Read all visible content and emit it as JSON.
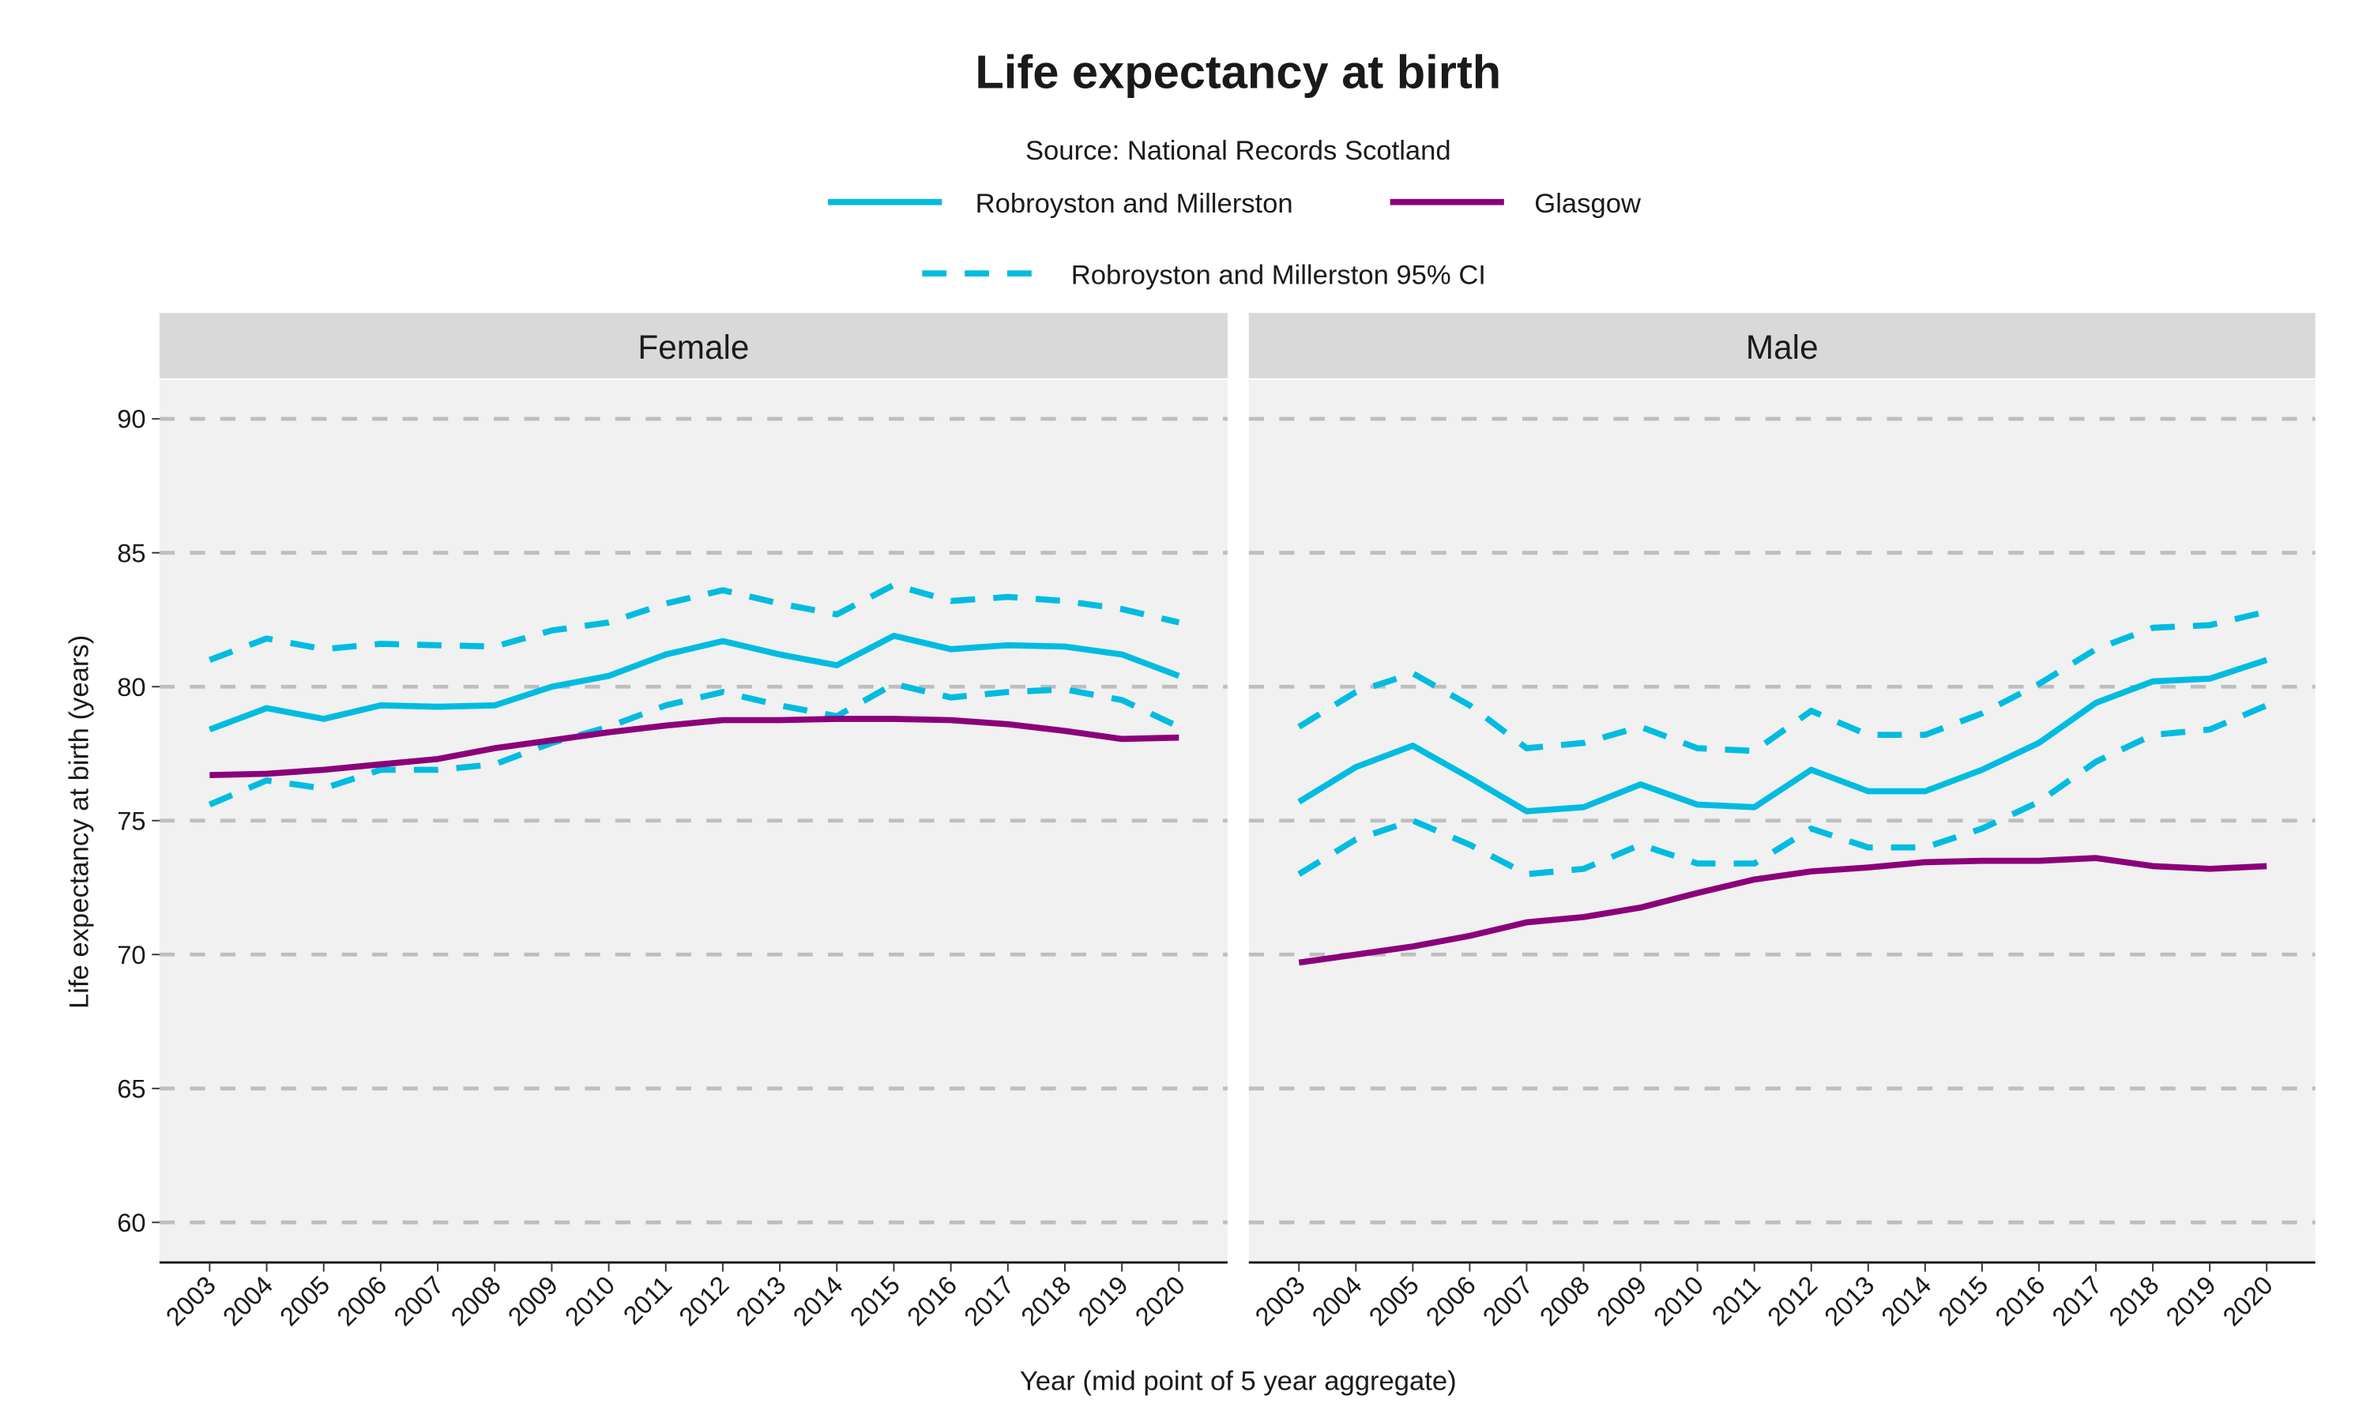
{
  "chart_data": [
    {
      "type": "line",
      "title": "Life expectancy at birth",
      "subtitle": "Source: National Records Scotland",
      "xlabel": "Year (mid point of 5 year aggregate)",
      "ylabel": "Life expectancy at birth (years)",
      "ylim": [
        58.5,
        91.5
      ],
      "yticks": [
        60,
        65,
        70,
        75,
        80,
        85,
        90
      ],
      "grid": true,
      "legend_position": "top",
      "legend": [
        {
          "label": "Robroyston and Millerston",
          "style": "solid",
          "color": "#00BCE0"
        },
        {
          "label": "Glasgow",
          "style": "solid",
          "color": "#8B007A"
        },
        {
          "label": "Robroyston and Millerston 95% CI",
          "style": "dashed",
          "color": "#00BCE0"
        }
      ],
      "x": [
        "2003",
        "2004",
        "2005",
        "2006",
        "2007",
        "2008",
        "2009",
        "2010",
        "2011",
        "2012",
        "2013",
        "2014",
        "2015",
        "2016",
        "2017",
        "2018",
        "2019",
        "2020"
      ],
      "panels": [
        {
          "name": "Female",
          "series": [
            {
              "name": "Robroyston and Millerston",
              "values": [
                78.4,
                79.2,
                78.8,
                79.3,
                79.25,
                79.3,
                80.0,
                80.4,
                81.2,
                81.7,
                81.2,
                80.8,
                81.9,
                81.4,
                81.55,
                81.5,
                81.2,
                80.4
              ]
            },
            {
              "name": "Robroyston and Millerston 95% CI upper",
              "values": [
                81.0,
                81.8,
                81.4,
                81.6,
                81.55,
                81.5,
                82.1,
                82.4,
                83.1,
                83.6,
                83.1,
                82.7,
                83.8,
                83.2,
                83.35,
                83.2,
                82.9,
                82.4
              ]
            },
            {
              "name": "Robroyston and Millerston 95% CI lower",
              "values": [
                75.6,
                76.5,
                76.2,
                76.9,
                76.9,
                77.1,
                77.9,
                78.5,
                79.3,
                79.8,
                79.3,
                78.9,
                80.1,
                79.6,
                79.8,
                79.9,
                79.5,
                78.5
              ]
            },
            {
              "name": "Glasgow",
              "values": [
                76.7,
                76.75,
                76.9,
                77.1,
                77.3,
                77.7,
                78.0,
                78.3,
                78.55,
                78.75,
                78.75,
                78.8,
                78.8,
                78.75,
                78.6,
                78.35,
                78.05,
                78.1
              ]
            }
          ]
        },
        {
          "name": "Male",
          "series": [
            {
              "name": "Robroyston and Millerston",
              "values": [
                75.7,
                77.0,
                77.8,
                76.6,
                75.35,
                75.5,
                76.35,
                75.6,
                75.5,
                76.9,
                76.1,
                76.1,
                76.9,
                77.9,
                79.4,
                80.2,
                80.3,
                81.0
              ]
            },
            {
              "name": "Robroyston and Millerston 95% CI upper",
              "values": [
                78.5,
                79.8,
                80.5,
                79.3,
                77.7,
                77.9,
                78.5,
                77.7,
                77.6,
                79.1,
                78.2,
                78.2,
                79.0,
                80.1,
                81.4,
                82.2,
                82.3,
                82.8
              ]
            },
            {
              "name": "Robroyston and Millerston 95% CI lower",
              "values": [
                73.0,
                74.3,
                75.0,
                74.1,
                73.0,
                73.2,
                74.1,
                73.4,
                73.4,
                74.7,
                74.0,
                74.0,
                74.7,
                75.7,
                77.2,
                78.2,
                78.4,
                79.3
              ]
            },
            {
              "name": "Glasgow",
              "values": [
                69.7,
                70.0,
                70.3,
                70.7,
                71.2,
                71.4,
                71.75,
                72.3,
                72.8,
                73.1,
                73.25,
                73.45,
                73.5,
                73.5,
                73.6,
                73.3,
                73.2,
                73.3
              ]
            }
          ]
        }
      ]
    }
  ]
}
